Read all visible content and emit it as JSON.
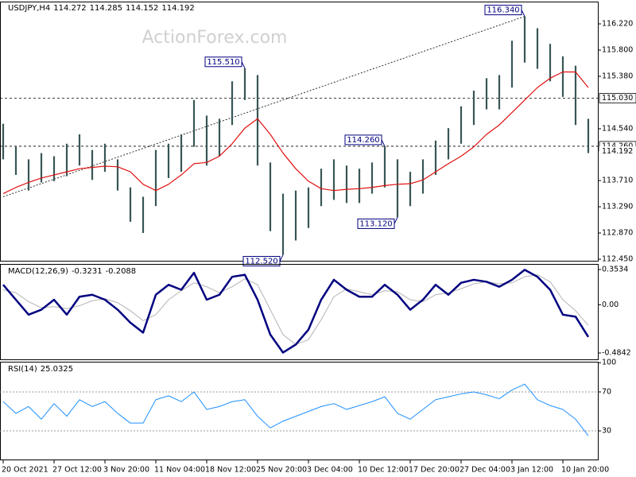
{
  "chart_data": [
    {
      "type": "price_range",
      "title": "USDJPY,H4",
      "ohlc": [
        114.272,
        114.285,
        114.152,
        114.192
      ],
      "watermark": "ActionForex.com",
      "categories": [
        "20 Oct 2021",
        null,
        null,
        null,
        "27 Oct 12:00",
        null,
        null,
        null,
        "3 Nov 20:00",
        null,
        null,
        null,
        "11 Nov 04:00",
        null,
        null,
        null,
        "18 Nov 12:00",
        null,
        null,
        null,
        "25 Nov 20:00",
        null,
        null,
        null,
        "3 Dec 04:00",
        null,
        null,
        null,
        "10 Dec 12:00",
        null,
        null,
        null,
        "17 Dec 20:00",
        null,
        null,
        null,
        "27 Dec 04:00",
        null,
        null,
        null,
        "3 Jan 12:00",
        null,
        null,
        null,
        "10 Jan 20:00",
        null,
        null
      ],
      "high": [
        114.62,
        114.25,
        114.05,
        114.15,
        114.1,
        114.3,
        114.45,
        114.2,
        114.3,
        114.05,
        113.6,
        113.45,
        114.2,
        114.3,
        114.45,
        115.0,
        114.75,
        114.7,
        115.3,
        115.51,
        115.4,
        114.0,
        113.5,
        113.55,
        113.6,
        113.9,
        114.05,
        113.95,
        113.9,
        114.0,
        114.26,
        114.05,
        113.85,
        114.05,
        114.35,
        114.55,
        114.9,
        115.15,
        115.35,
        115.4,
        115.95,
        116.34,
        116.15,
        115.9,
        115.7,
        115.55,
        114.7
      ],
      "low": [
        114.05,
        113.8,
        113.55,
        113.68,
        113.7,
        113.78,
        113.95,
        113.72,
        113.85,
        113.55,
        113.05,
        112.87,
        113.3,
        113.75,
        113.85,
        114.25,
        113.95,
        114.1,
        114.6,
        115.0,
        113.95,
        112.9,
        112.52,
        112.75,
        112.95,
        113.3,
        113.4,
        113.35,
        113.35,
        113.5,
        113.6,
        113.12,
        113.3,
        113.5,
        113.8,
        114.05,
        114.3,
        114.6,
        114.85,
        114.85,
        115.2,
        115.6,
        115.5,
        115.3,
        115.05,
        114.6,
        114.15
      ],
      "color": "#385656",
      "ma": {
        "color": "#e01010",
        "values": [
          113.5,
          113.6,
          113.68,
          113.75,
          113.8,
          113.85,
          113.9,
          113.92,
          113.94,
          113.93,
          113.85,
          113.65,
          113.55,
          113.65,
          113.8,
          113.98,
          114.0,
          114.1,
          114.3,
          114.55,
          114.7,
          114.45,
          114.15,
          113.9,
          113.7,
          113.58,
          113.55,
          113.57,
          113.58,
          113.6,
          113.63,
          113.65,
          113.66,
          113.72,
          113.85,
          113.98,
          114.1,
          114.25,
          114.45,
          114.6,
          114.8,
          115.0,
          115.2,
          115.35,
          115.45,
          115.45,
          115.2
        ]
      },
      "annotations": [
        {
          "value": 116.34,
          "label": "116.340"
        },
        {
          "value": 115.51,
          "label": "115.510"
        },
        {
          "value": 114.26,
          "label": "114.260"
        },
        {
          "value": 113.12,
          "label": "113.120"
        },
        {
          "value": 112.52,
          "label": "112.520"
        }
      ],
      "levels": [
        {
          "value": 115.03,
          "label": "115.030"
        },
        {
          "value": 114.26,
          "label": "114.260"
        }
      ],
      "current_price": {
        "value": 114.192,
        "label": "114.192"
      },
      "trendline_start": 113.45,
      "ylim": [
        112.425,
        116.577
      ],
      "yticks": [
        {
          "value": 116.22,
          "label": "116.220"
        },
        {
          "value": 115.8,
          "label": "115.800"
        },
        {
          "value": 115.38,
          "label": "115.380"
        },
        {
          "value": 114.54,
          "label": "114.540"
        },
        {
          "value": 113.71,
          "label": "113.710"
        },
        {
          "value": 113.29,
          "label": "113.290"
        },
        {
          "value": 112.87,
          "label": "112.870"
        },
        {
          "value": 112.45,
          "label": "112.450"
        }
      ]
    },
    {
      "type": "line",
      "title": "MACD(12,26,9)",
      "series": [
        {
          "name": "MACD",
          "color": "#000080",
          "width": 2.5,
          "values": [
            0.2,
            0.05,
            -0.1,
            -0.05,
            0.05,
            -0.1,
            0.08,
            0.1,
            0.05,
            -0.05,
            -0.18,
            -0.28,
            0.1,
            0.2,
            0.15,
            0.32,
            0.05,
            0.1,
            0.28,
            0.3,
            0.05,
            -0.3,
            -0.48,
            -0.4,
            -0.25,
            0.05,
            0.25,
            0.15,
            0.08,
            0.08,
            0.2,
            0.1,
            -0.05,
            0.05,
            0.2,
            0.1,
            0.22,
            0.25,
            0.23,
            0.18,
            0.25,
            0.35,
            0.28,
            0.15,
            -0.1,
            -0.12,
            -0.3231
          ]
        },
        {
          "name": "Signal",
          "color": "#b4b4b4",
          "width": 1,
          "values": [
            0.15,
            0.12,
            0.03,
            -0.03,
            -0.02,
            -0.04,
            -0.01,
            0.04,
            0.06,
            0.02,
            -0.06,
            -0.16,
            -0.1,
            0.05,
            0.14,
            0.22,
            0.18,
            0.12,
            0.18,
            0.26,
            0.2,
            -0.05,
            -0.3,
            -0.4,
            -0.35,
            -0.15,
            0.08,
            0.16,
            0.13,
            0.1,
            0.14,
            0.13,
            0.05,
            0.03,
            0.1,
            0.12,
            0.16,
            0.21,
            0.23,
            0.21,
            0.22,
            0.28,
            0.3,
            0.23,
            0.05,
            -0.06,
            -0.2088
          ]
        }
      ],
      "ylim": [
        -0.548,
        0.409
      ],
      "yticks": [
        0.3534,
        {
          "value": 0,
          "label": "0.00"
        },
        -0.4842
      ]
    },
    {
      "type": "line",
      "title": "RSI(14)",
      "series": [
        {
          "name": "RSI",
          "color": "#1e90ff",
          "width": 1,
          "values": [
            60,
            48,
            55,
            42,
            58,
            45,
            62,
            55,
            60,
            48,
            38,
            38,
            62,
            66,
            60,
            70,
            52,
            55,
            60,
            62,
            45,
            33,
            40,
            45,
            50,
            55,
            58,
            52,
            56,
            60,
            65,
            48,
            42,
            52,
            62,
            65,
            68,
            70,
            67,
            63,
            72,
            78,
            62,
            56,
            52,
            42,
            25.0325
          ]
        }
      ],
      "levels": [
        70,
        30
      ],
      "ylim": [
        0.6,
        101
      ],
      "yticks": [
        100,
        70,
        30
      ]
    }
  ]
}
